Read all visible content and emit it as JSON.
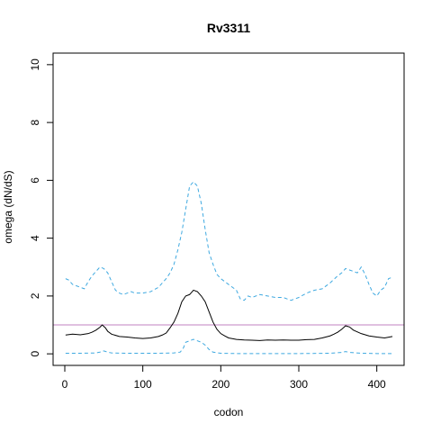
{
  "chart_data": {
    "type": "line",
    "title": "Rv3311",
    "xlabel": "codon",
    "ylabel": "omega (dN/dS)",
    "xlim": [
      -15,
      435
    ],
    "ylim": [
      -0.4,
      10.4
    ],
    "x_ticks": [
      0,
      100,
      200,
      300,
      400
    ],
    "y_ticks": [
      0,
      2,
      4,
      6,
      8,
      10
    ],
    "grid": false,
    "reference_line": {
      "y": 1,
      "color": "#c080c0"
    },
    "series": [
      {
        "role": "upper",
        "color": "#3fa9e0",
        "dash": "dashed",
        "x": [
          1,
          5,
          10,
          15,
          20,
          25,
          30,
          35,
          40,
          45,
          50,
          55,
          60,
          65,
          70,
          75,
          80,
          85,
          90,
          100,
          110,
          120,
          130,
          135,
          140,
          145,
          150,
          155,
          160,
          165,
          170,
          175,
          180,
          185,
          190,
          195,
          200,
          205,
          210,
          215,
          220,
          225,
          230,
          235,
          240,
          250,
          260,
          270,
          280,
          290,
          300,
          310,
          320,
          330,
          340,
          350,
          355,
          360,
          365,
          370,
          375,
          380,
          385,
          390,
          395,
          400,
          405,
          410,
          415,
          420
        ],
        "y": [
          2.6,
          2.55,
          2.4,
          2.35,
          2.3,
          2.25,
          2.5,
          2.7,
          2.85,
          3.0,
          2.95,
          2.8,
          2.5,
          2.2,
          2.1,
          2.05,
          2.1,
          2.15,
          2.1,
          2.1,
          2.15,
          2.3,
          2.6,
          2.8,
          3.1,
          3.6,
          4.2,
          5.0,
          5.8,
          5.95,
          5.8,
          5.2,
          4.3,
          3.5,
          3.1,
          2.75,
          2.6,
          2.5,
          2.4,
          2.3,
          2.2,
          1.9,
          1.85,
          2.0,
          1.95,
          2.05,
          2.0,
          1.95,
          1.95,
          1.85,
          1.95,
          2.1,
          2.2,
          2.25,
          2.45,
          2.7,
          2.8,
          2.95,
          2.9,
          2.85,
          2.8,
          3.0,
          2.75,
          2.4,
          2.1,
          2.0,
          2.2,
          2.3,
          2.6,
          2.65
        ]
      },
      {
        "role": "mean",
        "color": "#000000",
        "dash": "solid",
        "x": [
          1,
          10,
          20,
          30,
          35,
          40,
          45,
          48,
          52,
          55,
          60,
          70,
          80,
          90,
          100,
          110,
          120,
          125,
          130,
          135,
          140,
          145,
          150,
          155,
          160,
          165,
          170,
          175,
          180,
          185,
          190,
          195,
          200,
          205,
          210,
          220,
          230,
          240,
          250,
          260,
          270,
          280,
          290,
          300,
          310,
          320,
          330,
          340,
          345,
          350,
          355,
          360,
          365,
          370,
          380,
          390,
          400,
          410,
          420
        ],
        "y": [
          0.65,
          0.68,
          0.66,
          0.7,
          0.75,
          0.82,
          0.92,
          1.0,
          0.9,
          0.78,
          0.68,
          0.6,
          0.58,
          0.55,
          0.53,
          0.55,
          0.6,
          0.65,
          0.72,
          0.9,
          1.1,
          1.4,
          1.8,
          2.0,
          2.05,
          2.2,
          2.15,
          2.0,
          1.8,
          1.45,
          1.1,
          0.85,
          0.7,
          0.62,
          0.55,
          0.5,
          0.48,
          0.47,
          0.46,
          0.48,
          0.47,
          0.48,
          0.47,
          0.47,
          0.49,
          0.5,
          0.55,
          0.62,
          0.68,
          0.75,
          0.85,
          0.97,
          0.93,
          0.82,
          0.7,
          0.62,
          0.58,
          0.55,
          0.6
        ]
      },
      {
        "role": "lower",
        "color": "#3fa9e0",
        "dash": "dashed",
        "x": [
          1,
          20,
          40,
          45,
          50,
          55,
          60,
          80,
          100,
          120,
          140,
          148,
          152,
          155,
          160,
          165,
          170,
          175,
          180,
          185,
          190,
          200,
          220,
          250,
          300,
          340,
          355,
          360,
          365,
          380,
          400,
          420
        ],
        "y": [
          0.02,
          0.02,
          0.03,
          0.06,
          0.1,
          0.06,
          0.03,
          0.02,
          0.02,
          0.02,
          0.03,
          0.06,
          0.2,
          0.4,
          0.45,
          0.5,
          0.45,
          0.4,
          0.3,
          0.15,
          0.06,
          0.02,
          0.01,
          0.01,
          0.01,
          0.02,
          0.05,
          0.08,
          0.05,
          0.02,
          0.01,
          0.01
        ]
      }
    ]
  }
}
